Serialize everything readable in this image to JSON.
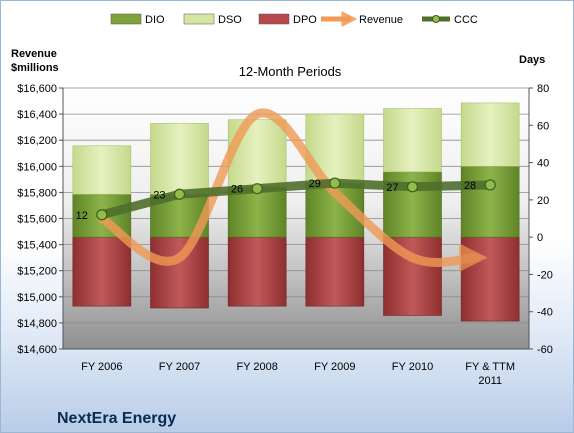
{
  "chart_data": {
    "type": "bar",
    "title": "12-Month Periods",
    "company": "NextEra Energy",
    "left_axis": {
      "label_line1": "Revenue",
      "label_line2": "$millions",
      "min": 14600,
      "max": 16600,
      "step": 200
    },
    "right_axis": {
      "label": "Days",
      "min": -60,
      "max": 80,
      "step": 20
    },
    "categories": [
      "FY 2006",
      "FY 2007",
      "FY 2008",
      "FY 2009",
      "FY 2010",
      "FY & TTM 2011"
    ],
    "legend": [
      {
        "name": "DIO",
        "kind": "bar",
        "color": "#7da33a"
      },
      {
        "name": "DSO",
        "kind": "bar",
        "color": "#d5e6a3"
      },
      {
        "name": "DPO",
        "kind": "bar",
        "color": "#b8494a"
      },
      {
        "name": "Revenue",
        "kind": "arrow",
        "color": "#f09a55"
      },
      {
        "name": "CCC",
        "kind": "line",
        "color": "#4f6f2b"
      }
    ],
    "series": [
      {
        "name": "DPO",
        "axis": "right",
        "values": [
          -37,
          -38,
          -37,
          -37,
          -42,
          -45
        ]
      },
      {
        "name": "DIO",
        "axis": "right",
        "values": [
          23,
          23,
          27,
          29,
          35,
          38
        ]
      },
      {
        "name": "DSO",
        "axis": "right",
        "values": [
          49,
          61,
          63,
          66,
          69,
          72
        ]
      },
      {
        "name": "CCC",
        "axis": "right",
        "values": [
          12,
          23,
          26,
          29,
          27,
          28
        ]
      },
      {
        "name": "Revenue",
        "axis": "left",
        "values": [
          15600,
          15300,
          16400,
          15800,
          15300,
          15300
        ]
      }
    ],
    "grid": true,
    "legend_position": "top"
  }
}
